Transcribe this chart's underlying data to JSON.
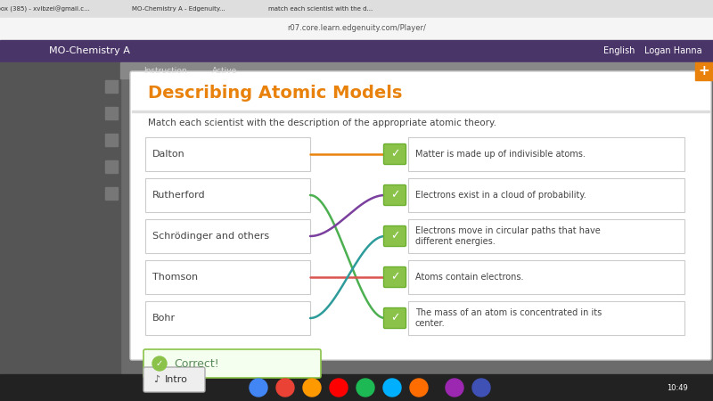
{
  "title": "Describing Atomic Models",
  "instruction": "Match each scientist with the description of the appropriate atomic theory.",
  "scientists": [
    "Dalton",
    "Rutherford",
    "Schrödinger and others",
    "Thomson",
    "Bohr"
  ],
  "descriptions": [
    "Matter is made up of indivisible atoms.",
    "Electrons exist in a cloud of probability.",
    "Electrons move in circular paths that have\ndifferent energies.",
    "Atoms contain electrons.",
    "The mass of an atom is concentrated in its\ncenter."
  ],
  "connections": [
    {
      "from": 0,
      "to": 0,
      "color": "#E8820C"
    },
    {
      "from": 1,
      "to": 4,
      "color": "#4CAF50"
    },
    {
      "from": 2,
      "to": 1,
      "color": "#7B3F9E"
    },
    {
      "from": 3,
      "to": 3,
      "color": "#D9534F"
    },
    {
      "from": 4,
      "to": 2,
      "color": "#2E9B9B"
    }
  ],
  "bg_color": "#FFFFFF",
  "title_color": "#E8820C",
  "box_border": "#CCCCCC",
  "check_bg": "#8BC34A",
  "check_border": "#6AAF30",
  "correct_bg": "#F5FFF0",
  "correct_border": "#8BC34A",
  "correct_text": "#5A8A5A",
  "text_color": "#444444",
  "outer_bg": "#6B6B6B",
  "header_bg": "#4A3568",
  "header_text": "#FFFFFF",
  "sidebar_bg": "#555555",
  "tab_bg": "#888888",
  "tab_text": "#DDDDDD"
}
